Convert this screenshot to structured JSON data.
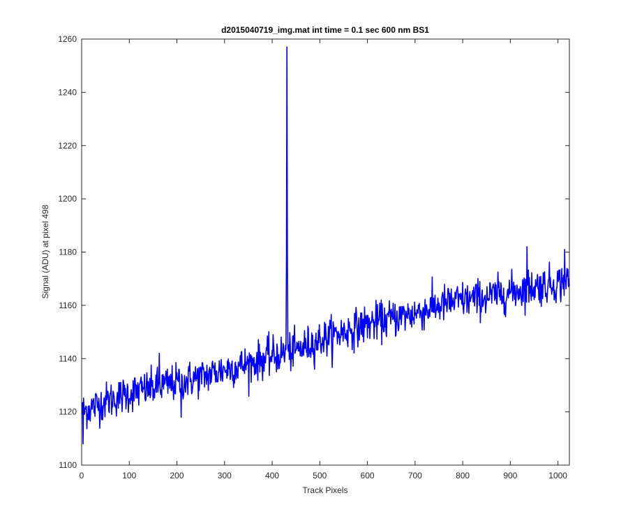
{
  "chart_data": {
    "type": "line",
    "title": "d2015040719_img.mat int time = 0.1 sec  600 nm BS1",
    "xlabel": "Track Pixels",
    "ylabel": "Signal (ADU) at pixel 498",
    "xlim": [
      0,
      1024
    ],
    "ylim": [
      1100,
      1260
    ],
    "xticks": [
      0,
      100,
      200,
      300,
      400,
      500,
      600,
      700,
      800,
      900,
      1000
    ],
    "yticks": [
      1100,
      1120,
      1140,
      1160,
      1180,
      1200,
      1220,
      1240,
      1260
    ],
    "grid": false,
    "line_color": "#0000ff",
    "trend": {
      "x": [
        0,
        50,
        100,
        150,
        200,
        250,
        300,
        350,
        400,
        450,
        500,
        550,
        600,
        650,
        700,
        750,
        800,
        850,
        900,
        950,
        1024
      ],
      "y": [
        1120,
        1124,
        1127,
        1129,
        1131,
        1133,
        1136,
        1138,
        1141,
        1143,
        1147,
        1150,
        1153,
        1155,
        1157,
        1160,
        1162,
        1163,
        1165,
        1167,
        1169
      ]
    },
    "noise_amplitude": 3.5,
    "features": [
      {
        "x": 3,
        "y": 1108
      },
      {
        "x": 163,
        "y": 1142
      },
      {
        "x": 209,
        "y": 1118
      },
      {
        "x": 430,
        "y": 1177
      },
      {
        "x": 431,
        "y": 1257
      },
      {
        "x": 432,
        "y": 1176
      },
      {
        "x": 935,
        "y": 1182
      },
      {
        "x": 1014,
        "y": 1181
      }
    ]
  }
}
